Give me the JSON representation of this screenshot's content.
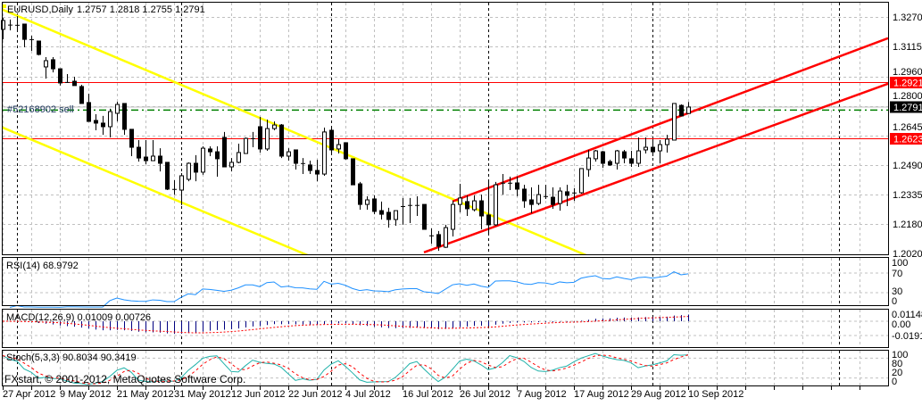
{
  "header": {
    "symbol_label": "EURUSD,Daily",
    "ohlc_label": "1.2757 1.2818 1.2755 1.2791"
  },
  "order_label": "#52168902 sell",
  "copyright": "FXstart, © 2001-2012, MetaQuotes Software Corp.",
  "colors": {
    "background": "#ffffff",
    "grid": "#c0c0c0",
    "candle_bear": "#000000",
    "candle_bull": "#ffffff",
    "bid_line": "#c0c0c0",
    "order_line": "#008000",
    "resistance_lines": "#ff0000",
    "downtrend_channel": "#ffff00",
    "uptrend_channel": "#ff0000",
    "rsi": "#1e90ff",
    "macd_histogram": "#000080",
    "macd_signal": "#ff0000",
    "stoch_main": "#20b2aa",
    "stoch_signal": "#ff0000"
  },
  "chart_data": {
    "type": "candlestick",
    "symbol": "EURUSD",
    "timeframe": "Daily",
    "grid": true,
    "price_axis": {
      "range": [
        1.202,
        1.329
      ],
      "ticks": [
        "1.3270",
        "1.3115",
        "1.2960",
        "1.2800",
        "1.2645",
        "1.2490",
        "1.2335",
        "1.2180",
        "1.2020"
      ]
    },
    "x_ticks": [
      "27 Apr 2012",
      "9 May 2012",
      "21 May 2012",
      "31 May 2012",
      "12 Jun 2012",
      "22 Jun 2012",
      "4 Jul 2012",
      "16 Jul 2012",
      "26 Jul 2012",
      "7 Aug 2012",
      "17 Aug 2012",
      "29 Aug 2012",
      "10 Sep 2012"
    ],
    "candle_fields": [
      "date",
      "open",
      "high",
      "low",
      "close"
    ],
    "candles": [
      [
        "27 Apr 2012",
        1.3203,
        1.3264,
        1.315,
        1.325
      ],
      [
        "30 Apr 2012",
        1.3228,
        1.3255,
        1.3198,
        1.3224
      ],
      [
        "1 May 2012",
        1.3227,
        1.3273,
        1.3198,
        1.3225
      ],
      [
        "2 May 2012",
        1.3231,
        1.3231,
        1.3108,
        1.315
      ],
      [
        "3 May 2012",
        1.3151,
        1.3169,
        1.3089,
        1.3149
      ],
      [
        "4 May 2012",
        1.3141,
        1.3141,
        1.3065,
        1.307
      ],
      [
        "7 May 2012",
        1.3004,
        1.3056,
        1.2942,
        1.3037
      ],
      [
        "8 May 2012",
        1.3042,
        1.3056,
        1.2975,
        1.2994
      ],
      [
        "9 May 2012",
        1.2994,
        1.2994,
        1.2905,
        1.2919
      ],
      [
        "10 May 2012",
        1.2924,
        1.2966,
        1.2919,
        1.2922
      ],
      [
        "11 May 2012",
        1.2928,
        1.2952,
        1.2905,
        1.2905
      ],
      [
        "14 May 2012",
        1.29,
        1.2909,
        1.281,
        1.281
      ],
      [
        "15 May 2012",
        1.2815,
        1.2862,
        1.2715,
        1.2715
      ],
      [
        "16 May 2012",
        1.272,
        1.2753,
        1.2668,
        1.2706
      ],
      [
        "17 May 2012",
        1.2706,
        1.2744,
        1.2644,
        1.2687
      ],
      [
        "18 May 2012",
        1.2687,
        1.2782,
        1.263,
        1.2767
      ],
      [
        "21 May 2012",
        1.2758,
        1.2819,
        1.2715,
        1.2805
      ],
      [
        "22 May 2012",
        1.281,
        1.281,
        1.2644,
        1.2673
      ],
      [
        "23 May 2012",
        1.2673,
        1.2673,
        1.2531,
        1.2578
      ],
      [
        "24 May 2012",
        1.2578,
        1.2616,
        1.2502,
        1.2521
      ],
      [
        "25 May 2012",
        1.2526,
        1.2616,
        1.2488,
        1.2507
      ],
      [
        "28 May 2012",
        1.2507,
        1.2616,
        1.2507,
        1.2531
      ],
      [
        "29 May 2012",
        1.2531,
        1.2573,
        1.245,
        1.2493
      ],
      [
        "30 May 2012",
        1.2498,
        1.2498,
        1.2351,
        1.2356
      ],
      [
        "31 May 2012",
        1.2357,
        1.2403,
        1.2327,
        1.2355
      ],
      [
        "1 Jun 2012",
        1.2351,
        1.2441,
        1.2271,
        1.2427
      ],
      [
        "4 Jun 2012",
        1.2408,
        1.2498,
        1.2398,
        1.2493
      ],
      [
        "5 Jun 2012",
        1.2493,
        1.2536,
        1.2398,
        1.2446
      ],
      [
        "6 Jun 2012",
        1.2446,
        1.2583,
        1.2432,
        1.2573
      ],
      [
        "7 Jun 2012",
        1.2569,
        1.2583,
        1.2531,
        1.2554
      ],
      [
        "8 Jun 2012",
        1.2554,
        1.2583,
        1.2422,
        1.2517
      ],
      [
        "11 Jun 2012",
        1.263,
        1.2659,
        1.2474,
        1.2474
      ],
      [
        "12 Jun 2012",
        1.2474,
        1.2521,
        1.245,
        1.2498
      ],
      [
        "13 Jun 2012",
        1.2498,
        1.2597,
        1.2493,
        1.255
      ],
      [
        "14 Jun 2012",
        1.2545,
        1.263,
        1.2545,
        1.2625
      ],
      [
        "15 Jun 2012",
        1.2626,
        1.2659,
        1.2578,
        1.2624
      ],
      [
        "18 Jun 2012",
        1.2687,
        1.2739,
        1.255,
        1.2569
      ],
      [
        "19 Jun 2012",
        1.2569,
        1.2725,
        1.2559,
        1.2677
      ],
      [
        "20 Jun 2012",
        1.2677,
        1.2715,
        1.2668,
        1.2696
      ],
      [
        "21 Jun 2012",
        1.2696,
        1.2701,
        1.2521,
        1.2531
      ],
      [
        "22 Jun 2012",
        1.2531,
        1.2573,
        1.2507,
        1.2554
      ],
      [
        "25 Jun 2012",
        1.2564,
        1.2564,
        1.246,
        1.2493
      ],
      [
        "26 Jun 2012",
        1.2494,
        1.2521,
        1.2436,
        1.2492
      ],
      [
        "27 Jun 2012",
        1.2484,
        1.2507,
        1.2436,
        1.2455
      ],
      [
        "28 Jun 2012",
        1.2455,
        1.2512,
        1.2398,
        1.2436
      ],
      [
        "29 Jun 2012",
        1.2436,
        1.2682,
        1.2427,
        1.2659
      ],
      [
        "2 Jul 2012",
        1.2668,
        1.2687,
        1.2545,
        1.2564
      ],
      [
        "3 Jul 2012",
        1.2569,
        1.2621,
        1.2545,
        1.2592
      ],
      [
        "4 Jul 2012",
        1.2602,
        1.2602,
        1.2512,
        1.2517
      ],
      [
        "5 Jul 2012",
        1.2517,
        1.2517,
        1.2379,
        1.2379
      ],
      [
        "6 Jul 2012",
        1.2384,
        1.2394,
        1.2247,
        1.2275
      ],
      [
        "9 Jul 2012",
        1.2275,
        1.2318,
        1.2247,
        1.2299
      ],
      [
        "10 Jul 2012",
        1.2304,
        1.2323,
        1.2223,
        1.2238
      ],
      [
        "11 Jul 2012",
        1.2242,
        1.229,
        1.2195,
        1.2223
      ],
      [
        "12 Jul 2012",
        1.2233,
        1.2257,
        1.2152,
        1.2195
      ],
      [
        "13 Jul 2012",
        1.2195,
        1.2242,
        1.2162,
        1.2242
      ],
      [
        "16 Jul 2012",
        1.2266,
        1.2309,
        1.2167,
        1.2261
      ],
      [
        "17 Jul 2012",
        1.2272,
        1.2309,
        1.2176,
        1.227
      ],
      [
        "18 Jul 2012",
        1.2272,
        1.2318,
        1.2214,
        1.227
      ],
      [
        "19 Jul 2012",
        1.2275,
        1.2275,
        1.2143,
        1.2143
      ],
      [
        "20 Jul 2012",
        1.2111,
        1.2148,
        1.2067,
        1.2109
      ],
      [
        "23 Jul 2012",
        1.2115,
        1.2134,
        1.2029,
        1.2053
      ],
      [
        "24 Jul 2012",
        1.2048,
        1.2167,
        1.2044,
        1.2152
      ],
      [
        "25 Jul 2012",
        1.2143,
        1.2294,
        1.2105,
        1.2275
      ],
      [
        "26 Jul 2012",
        1.2275,
        1.2384,
        1.2233,
        1.2309
      ],
      [
        "27 Jul 2012",
        1.229,
        1.2323,
        1.2214,
        1.2252
      ],
      [
        "30 Jul 2012",
        1.2247,
        1.2323,
        1.2238,
        1.2294
      ],
      [
        "31 Jul 2012",
        1.2294,
        1.2327,
        1.2143,
        1.2214
      ],
      [
        "1 Aug 2012",
        1.2219,
        1.2394,
        1.2119,
        1.2167
      ],
      [
        "2 Aug 2012",
        1.2167,
        1.2394,
        1.2162,
        1.2379
      ],
      [
        "3 Aug 2012",
        1.239,
        1.2436,
        1.2327,
        1.2388
      ],
      [
        "6 Aug 2012",
        1.239,
        1.2422,
        1.2351,
        1.2388
      ],
      [
        "7 Aug 2012",
        1.2389,
        1.2422,
        1.2318,
        1.2356
      ],
      [
        "8 Aug 2012",
        1.2356,
        1.2379,
        1.2257,
        1.2294
      ],
      [
        "9 Aug 2012",
        1.2299,
        1.2365,
        1.2228,
        1.2275
      ],
      [
        "10 Aug 2012",
        1.228,
        1.2379,
        1.2271,
        1.2327
      ],
      [
        "13 Aug 2012",
        1.2319,
        1.2379,
        1.2304,
        1.2317
      ],
      [
        "14 Aug 2012",
        1.2313,
        1.2365,
        1.2252,
        1.2275
      ],
      [
        "15 Aug 2012",
        1.228,
        1.2365,
        1.2242,
        1.2346
      ],
      [
        "16 Aug 2012",
        1.2342,
        1.2379,
        1.2266,
        1.2323
      ],
      [
        "17 Aug 2012",
        1.2338,
        1.2361,
        1.2294,
        1.2336
      ],
      [
        "20 Aug 2012",
        1.2337,
        1.2465,
        1.2332,
        1.2465
      ],
      [
        "21 Aug 2012",
        1.246,
        1.2564,
        1.2422,
        1.2521
      ],
      [
        "22 Aug 2012",
        1.2517,
        1.2564,
        1.2502,
        1.2559
      ],
      [
        "23 Aug 2012",
        1.2554,
        1.2559,
        1.2469,
        1.2493
      ],
      [
        "24 Aug 2012",
        1.2502,
        1.2512,
        1.2479,
        1.2484
      ],
      [
        "27 Aug 2012",
        1.2493,
        1.2564,
        1.246,
        1.2559
      ],
      [
        "28 Aug 2012",
        1.2554,
        1.2564,
        1.2493,
        1.2521
      ],
      [
        "29 Aug 2012",
        1.2517,
        1.2559,
        1.2474,
        1.2493
      ],
      [
        "30 Aug 2012",
        1.2493,
        1.263,
        1.2474,
        1.2559
      ],
      [
        "31 Aug 2012",
        1.2564,
        1.263,
        1.2545,
        1.2578
      ],
      [
        "3 Sep 2012",
        1.2578,
        1.2621,
        1.2531,
        1.2554
      ],
      [
        "4 Sep 2012",
        1.2559,
        1.2616,
        1.2493,
        1.2592
      ],
      [
        "5 Sep 2012",
        1.2592,
        1.2644,
        1.255,
        1.2621
      ],
      [
        "6 Sep 2012",
        1.2616,
        1.281,
        1.2616,
        1.281
      ],
      [
        "7 Sep 2012",
        1.28,
        1.2805,
        1.2744,
        1.2744
      ],
      [
        "10 Sep 2012",
        1.2757,
        1.2818,
        1.2755,
        1.2791
      ]
    ],
    "price_tags": [
      {
        "label": "1.2921",
        "price": 1.2921,
        "style": "red"
      },
      {
        "label": "1.2791",
        "price": 1.2791,
        "style": "black"
      },
      {
        "label": "1.2623",
        "price": 1.2623,
        "style": "red"
      }
    ],
    "horizontal_lines": [
      {
        "price": 1.2921,
        "color": "#ff0000",
        "style": "solid"
      },
      {
        "price": 1.2623,
        "color": "#ff0000",
        "style": "solid"
      },
      {
        "price": 1.2791,
        "color": "#c0c0c0",
        "style": "solid"
      },
      {
        "price": 1.2775,
        "color": "#008000",
        "style": "dashdot"
      }
    ],
    "trendlines": [
      {
        "color": "#ffff00",
        "from": [
          "27 Apr 2012",
          1.3313
        ],
        "to": [
          "21 Aug 2012",
          1.2001
        ],
        "ray": false
      },
      {
        "color": "#ffff00",
        "from": [
          "27 Apr 2012",
          1.2688
        ],
        "to": [
          "27 Jun 2012",
          1.2001
        ],
        "ray": false
      },
      {
        "color": "#ff0000",
        "from": [
          "25 Jul 2012",
          1.2291
        ],
        "to": [
          "10 Sep 2012",
          1.2759
        ],
        "ray": true
      },
      {
        "color": "#ff0000",
        "from": [
          "19 Jul 2012",
          1.2021
        ],
        "to": [
          "10 Sep 2012",
          1.253
        ],
        "ray": true
      }
    ],
    "indicators": {
      "rsi": {
        "label": "RSI(14) 68.9792",
        "period": 14,
        "levels": [
          70,
          30
        ],
        "axis_ticks": [
          "100",
          "70",
          "30",
          "0"
        ]
      },
      "macd": {
        "label": "MACD(12,26,9) 0.01009 0.00726",
        "fast": 12,
        "slow": 26,
        "signal": 9,
        "axis_ticks": [
          "0.01148",
          "0.00",
          "-0.01918"
        ],
        "range": [
          -0.04,
          0.019
        ]
      },
      "stoch": {
        "label": "Stoch(5,3,3) 90.8034 90.3419",
        "k": 5,
        "d": 3,
        "slowing": 3,
        "levels": [
          80,
          20
        ],
        "axis_ticks": [
          "100",
          "80",
          "20",
          "0"
        ]
      }
    }
  }
}
